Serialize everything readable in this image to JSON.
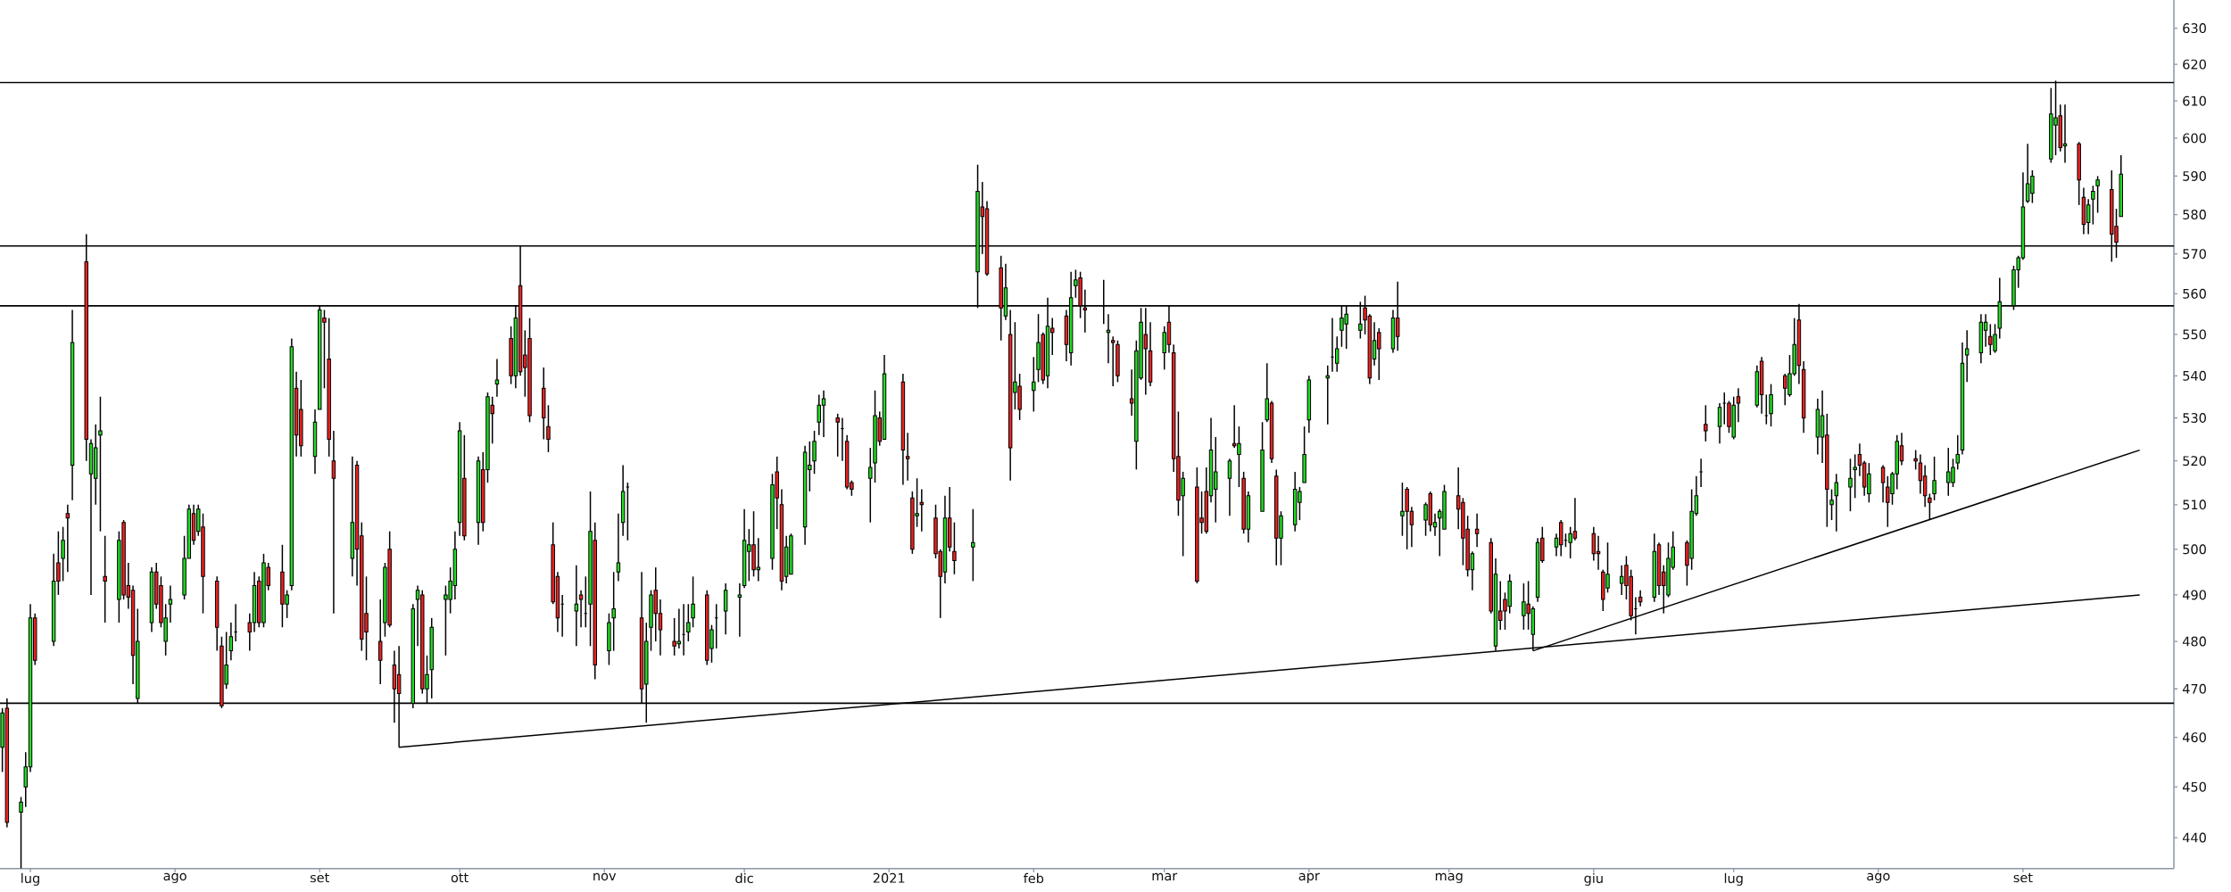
{
  "chart_data": {
    "type": "candlestick",
    "log": "y",
    "xlim": [
      "2020-06-24T12:00",
      "2021-10-03T08:00"
    ],
    "xticks": [
      {
        "value": "2020-07-01",
        "label": "lug"
      },
      {
        "value": "2020-08-01",
        "label": "ago"
      },
      {
        "value": "2020-09-01",
        "label": "set"
      },
      {
        "value": "2020-10-01",
        "label": "ott"
      },
      {
        "value": "2020-11-01",
        "label": "nov"
      },
      {
        "value": "2020-12-01",
        "label": "dic"
      },
      {
        "value": "2021-01-01",
        "label": "2021"
      },
      {
        "value": "2021-02-01",
        "label": "feb"
      },
      {
        "value": "2021-03-01",
        "label": "mar"
      },
      {
        "value": "2021-04-01",
        "label": "apr"
      },
      {
        "value": "2021-05-01",
        "label": "mag"
      },
      {
        "value": "2021-06-01",
        "label": "giu"
      },
      {
        "value": "2021-07-01",
        "label": "lug"
      },
      {
        "value": "2021-08-01",
        "label": "ago"
      },
      {
        "value": "2021-09-01",
        "label": "set"
      }
    ],
    "ylim": [
      434,
      638
    ],
    "yticks": [
      440,
      450,
      460,
      470,
      480,
      490,
      500,
      510,
      520,
      530,
      540,
      550,
      560,
      570,
      580,
      590,
      600,
      610,
      620,
      630
    ],
    "ref_lines": [
      {
        "axis": "y",
        "value": 615,
        "color": "#000000"
      },
      {
        "axis": "y",
        "value": 572,
        "color": "#000000"
      },
      {
        "axis": "y",
        "value": 557,
        "color": "#000000"
      },
      {
        "axis": "y",
        "value": 467,
        "color": "#000000"
      }
    ],
    "series": [
      {
        "type": "line",
        "color": "#000000",
        "x": [
          "2020-09-18",
          "2021-09-26"
        ],
        "values": [
          458,
          490
        ]
      },
      {
        "type": "line",
        "color": "#000000",
        "x": [
          "2021-05-19",
          "2021-09-26"
        ],
        "values": [
          478,
          522.5
        ]
      }
    ],
    "x": [
      "2020-06-25",
      "2020-06-26",
      "2020-06-29",
      "2020-06-30",
      "2020-07-01",
      "2020-07-02",
      "2020-07-06",
      "2020-07-07",
      "2020-07-08",
      "2020-07-09",
      "2020-07-10",
      "2020-07-13",
      "2020-07-14",
      "2020-07-15",
      "2020-07-16",
      "2020-07-17",
      "2020-07-20",
      "2020-07-21",
      "2020-07-22",
      "2020-07-23",
      "2020-07-24",
      "2020-07-27",
      "2020-07-28",
      "2020-07-29",
      "2020-07-30",
      "2020-07-31",
      "2020-08-03",
      "2020-08-04",
      "2020-08-05",
      "2020-08-06",
      "2020-08-07",
      "2020-08-10",
      "2020-08-11",
      "2020-08-12",
      "2020-08-13",
      "2020-08-14",
      "2020-08-17",
      "2020-08-18",
      "2020-08-19",
      "2020-08-20",
      "2020-08-21",
      "2020-08-24",
      "2020-08-25",
      "2020-08-26",
      "2020-08-27",
      "2020-08-28",
      "2020-08-31",
      "2020-09-01",
      "2020-09-02",
      "2020-09-03",
      "2020-09-04",
      "2020-09-08",
      "2020-09-09",
      "2020-09-10",
      "2020-09-11",
      "2020-09-14",
      "2020-09-15",
      "2020-09-16",
      "2020-09-17",
      "2020-09-18",
      "2020-09-21",
      "2020-09-22",
      "2020-09-23",
      "2020-09-24",
      "2020-09-25",
      "2020-09-28",
      "2020-09-29",
      "2020-09-30",
      "2020-10-01",
      "2020-10-02",
      "2020-10-05",
      "2020-10-06",
      "2020-10-07",
      "2020-10-08",
      "2020-10-09",
      "2020-10-12",
      "2020-10-13",
      "2020-10-14",
      "2020-10-15",
      "2020-10-16",
      "2020-10-19",
      "2020-10-20",
      "2020-10-21",
      "2020-10-22",
      "2020-10-23",
      "2020-10-26",
      "2020-10-27",
      "2020-10-28",
      "2020-10-29",
      "2020-10-30",
      "2020-11-02",
      "2020-11-03",
      "2020-11-04",
      "2020-11-05",
      "2020-11-06",
      "2020-11-09",
      "2020-11-10",
      "2020-11-11",
      "2020-11-12",
      "2020-11-13",
      "2020-11-16",
      "2020-11-17",
      "2020-11-18",
      "2020-11-19",
      "2020-11-20",
      "2020-11-23",
      "2020-11-24",
      "2020-11-25",
      "2020-11-27",
      "2020-11-30",
      "2020-12-01",
      "2020-12-02",
      "2020-12-03",
      "2020-12-04",
      "2020-12-07",
      "2020-12-08",
      "2020-12-09",
      "2020-12-10",
      "2020-12-11",
      "2020-12-14",
      "2020-12-15",
      "2020-12-16",
      "2020-12-17",
      "2020-12-18",
      "2020-12-21",
      "2020-12-22",
      "2020-12-23",
      "2020-12-24",
      "2020-12-28",
      "2020-12-29",
      "2020-12-30",
      "2020-12-31",
      "2021-01-04",
      "2021-01-05",
      "2021-01-06",
      "2021-01-07",
      "2021-01-08",
      "2021-01-11",
      "2021-01-12",
      "2021-01-13",
      "2021-01-14",
      "2021-01-15",
      "2021-01-19",
      "2021-01-20",
      "2021-01-21",
      "2021-01-22",
      "2021-01-25",
      "2021-01-26",
      "2021-01-27",
      "2021-01-28",
      "2021-01-29",
      "2021-02-01",
      "2021-02-02",
      "2021-02-03",
      "2021-02-04",
      "2021-02-05",
      "2021-02-08",
      "2021-02-09",
      "2021-02-10",
      "2021-02-11",
      "2021-02-12",
      "2021-02-16",
      "2021-02-17",
      "2021-02-18",
      "2021-02-19",
      "2021-02-22",
      "2021-02-23",
      "2021-02-24",
      "2021-02-25",
      "2021-02-26",
      "2021-03-01",
      "2021-03-02",
      "2021-03-03",
      "2021-03-04",
      "2021-03-05",
      "2021-03-08",
      "2021-03-09",
      "2021-03-10",
      "2021-03-11",
      "2021-03-12",
      "2021-03-15",
      "2021-03-16",
      "2021-03-17",
      "2021-03-18",
      "2021-03-19",
      "2021-03-22",
      "2021-03-23",
      "2021-03-24",
      "2021-03-25",
      "2021-03-26",
      "2021-03-29",
      "2021-03-30",
      "2021-03-31",
      "2021-04-01",
      "2021-04-05",
      "2021-04-06",
      "2021-04-07",
      "2021-04-08",
      "2021-04-09",
      "2021-04-12",
      "2021-04-13",
      "2021-04-14",
      "2021-04-15",
      "2021-04-16",
      "2021-04-19",
      "2021-04-20",
      "2021-04-21",
      "2021-04-22",
      "2021-04-23",
      "2021-04-26",
      "2021-04-27",
      "2021-04-28",
      "2021-04-29",
      "2021-04-30",
      "2021-05-03",
      "2021-05-04",
      "2021-05-05",
      "2021-05-06",
      "2021-05-07",
      "2021-05-10",
      "2021-05-11",
      "2021-05-12",
      "2021-05-13",
      "2021-05-14",
      "2021-05-17",
      "2021-05-18",
      "2021-05-19",
      "2021-05-20",
      "2021-05-21",
      "2021-05-24",
      "2021-05-25",
      "2021-05-26",
      "2021-05-27",
      "2021-05-28",
      "2021-06-01",
      "2021-06-02",
      "2021-06-03",
      "2021-06-04",
      "2021-06-07",
      "2021-06-08",
      "2021-06-09",
      "2021-06-10",
      "2021-06-11",
      "2021-06-14",
      "2021-06-15",
      "2021-06-16",
      "2021-06-17",
      "2021-06-18",
      "2021-06-21",
      "2021-06-22",
      "2021-06-23",
      "2021-06-24",
      "2021-06-25",
      "2021-06-28",
      "2021-06-29",
      "2021-06-30",
      "2021-07-01",
      "2021-07-02",
      "2021-07-06",
      "2021-07-07",
      "2021-07-08",
      "2021-07-09",
      "2021-07-12",
      "2021-07-13",
      "2021-07-14",
      "2021-07-15",
      "2021-07-16",
      "2021-07-19",
      "2021-07-20",
      "2021-07-21",
      "2021-07-22",
      "2021-07-23",
      "2021-07-26",
      "2021-07-27",
      "2021-07-28",
      "2021-07-29",
      "2021-07-30",
      "2021-08-02",
      "2021-08-03",
      "2021-08-04",
      "2021-08-05",
      "2021-08-06",
      "2021-08-09",
      "2021-08-10",
      "2021-08-11",
      "2021-08-12",
      "2021-08-13",
      "2021-08-16",
      "2021-08-17",
      "2021-08-18",
      "2021-08-19",
      "2021-08-20",
      "2021-08-23",
      "2021-08-24",
      "2021-08-25",
      "2021-08-26",
      "2021-08-27",
      "2021-08-30",
      "2021-08-31",
      "2021-09-01",
      "2021-09-02",
      "2021-09-03",
      "2021-09-07",
      "2021-09-08",
      "2021-09-09",
      "2021-09-10",
      "2021-09-13",
      "2021-09-14",
      "2021-09-15",
      "2021-09-16",
      "2021-09-17",
      "2021-09-20",
      "2021-09-21",
      "2021-09-22"
    ],
    "ohlc": [
      [
        458,
        466,
        453,
        465
      ],
      [
        466,
        468,
        442,
        443
      ],
      [
        445,
        448,
        434,
        447
      ],
      [
        450,
        457,
        446,
        454
      ],
      [
        454,
        488,
        453,
        485
      ],
      [
        485,
        486,
        475,
        476
      ],
      [
        480,
        499,
        479,
        493
      ],
      [
        497,
        504,
        490,
        493
      ],
      [
        498,
        505,
        493,
        502
      ],
      [
        508,
        510,
        495,
        507
      ],
      [
        519,
        556,
        511,
        548
      ],
      [
        568,
        575,
        520,
        525
      ],
      [
        517,
        525,
        490,
        524
      ],
      [
        516,
        528.5,
        510,
        523
      ],
      [
        526,
        535,
        504,
        527
      ],
      [
        494,
        503,
        484,
        493
      ],
      [
        489,
        504,
        484,
        502
      ],
      [
        506,
        506.5,
        489,
        490
      ],
      [
        492,
        497,
        487,
        489.5
      ],
      [
        491,
        492,
        471,
        477
      ],
      [
        468,
        487,
        467,
        480
      ],
      [
        484,
        496,
        482,
        495
      ],
      [
        495,
        497,
        487,
        488
      ],
      [
        492,
        494,
        483,
        484
      ],
      [
        480,
        488,
        477,
        485
      ],
      [
        488,
        492,
        484,
        489
      ],
      [
        490,
        503,
        489,
        498
      ],
      [
        498,
        510,
        498,
        509
      ],
      [
        508,
        510,
        501,
        502
      ],
      [
        504,
        510,
        503,
        509
      ],
      [
        505,
        508,
        486,
        494
      ],
      [
        493,
        494,
        478,
        483
      ],
      [
        479,
        481,
        466,
        466.5
      ],
      [
        471,
        482,
        470,
        475
      ],
      [
        478,
        484,
        476,
        481
      ],
      [
        482,
        488,
        480,
        482
      ],
      [
        484,
        486,
        478,
        482
      ],
      [
        484,
        495,
        482,
        492
      ],
      [
        493,
        494,
        483,
        484
      ],
      [
        484,
        499,
        483,
        497
      ],
      [
        496,
        497,
        491,
        492
      ],
      [
        495,
        501,
        483,
        488
      ],
      [
        488,
        491,
        485,
        490
      ],
      [
        492,
        549,
        491,
        547
      ],
      [
        537,
        541,
        521,
        526
      ],
      [
        532,
        539,
        521,
        523.5
      ],
      [
        521,
        532,
        517,
        529
      ],
      [
        532,
        557,
        532,
        556
      ],
      [
        554,
        556,
        537,
        553
      ],
      [
        544,
        554,
        521,
        525
      ],
      [
        520,
        527,
        486,
        516
      ],
      [
        498,
        521,
        494,
        506
      ],
      [
        519,
        520,
        492,
        500
      ],
      [
        503,
        506,
        478,
        480.5
      ],
      [
        486,
        494,
        476,
        482
      ],
      [
        480,
        489,
        471,
        476
      ],
      [
        484,
        497,
        481,
        496
      ],
      [
        500,
        504,
        483,
        483.5
      ],
      [
        475,
        478,
        463,
        470
      ],
      [
        473,
        479,
        458,
        469
      ],
      [
        467,
        488,
        466,
        487
      ],
      [
        489,
        492,
        479,
        491
      ],
      [
        490,
        491,
        469,
        470
      ],
      [
        470,
        477,
        467,
        473
      ],
      [
        474,
        485,
        468,
        483
      ],
      [
        489,
        492,
        477,
        490
      ],
      [
        489,
        496,
        486,
        493
      ],
      [
        492,
        504,
        489,
        500
      ],
      [
        506,
        529,
        503,
        527
      ],
      [
        516,
        526,
        502,
        503
      ],
      [
        506,
        521,
        501,
        520
      ],
      [
        518,
        522,
        504,
        506
      ],
      [
        518,
        536,
        515,
        535
      ],
      [
        533,
        535,
        524,
        531
      ],
      [
        538,
        544,
        535,
        539
      ],
      [
        549,
        552,
        538,
        540
      ],
      [
        540,
        557,
        537,
        554
      ],
      [
        562,
        572,
        540,
        541
      ],
      [
        545,
        551,
        535,
        542
      ],
      [
        549,
        554,
        529,
        530.5
      ],
      [
        537,
        542,
        525,
        530
      ],
      [
        528,
        533,
        522,
        525
      ],
      [
        501,
        506,
        488,
        488.5
      ],
      [
        494,
        495,
        482,
        485
      ],
      [
        488,
        490,
        481,
        488
      ],
      [
        486.5,
        496.5,
        479,
        488
      ],
      [
        490,
        491,
        483,
        489
      ],
      [
        486,
        494,
        483,
        486
      ],
      [
        488,
        513,
        479,
        504
      ],
      [
        502,
        506,
        472,
        475
      ],
      [
        478,
        486,
        475,
        484
      ],
      [
        485,
        495,
        478,
        487
      ],
      [
        495,
        508,
        493,
        497
      ],
      [
        506,
        519,
        503,
        513
      ],
      [
        514,
        515,
        502,
        514
      ],
      [
        485,
        495,
        467,
        470
      ],
      [
        471,
        484,
        463,
        480
      ],
      [
        483,
        491,
        478,
        490
      ],
      [
        491,
        496,
        480,
        486
      ],
      [
        486,
        489,
        477,
        482.5
      ],
      [
        480,
        485,
        477,
        479
      ],
      [
        479.5,
        487,
        478.5,
        480
      ],
      [
        481.5,
        488,
        477,
        481.5
      ],
      [
        482,
        488,
        480,
        484
      ],
      [
        485,
        494,
        483,
        488
      ],
      [
        490,
        491,
        475,
        476
      ],
      [
        478.5,
        483.5,
        475.5,
        482.5
      ],
      [
        485,
        488,
        478.5,
        485
      ],
      [
        486.5,
        492.5,
        481.5,
        491
      ],
      [
        489.5,
        492.5,
        481,
        490
      ],
      [
        492,
        509,
        491.5,
        502
      ],
      [
        499.5,
        504.5,
        493,
        501
      ],
      [
        501,
        508.5,
        494,
        495.5
      ],
      [
        495.5,
        502.5,
        493,
        496
      ],
      [
        498,
        517,
        495.5,
        514.5
      ],
      [
        517.5,
        521,
        504.5,
        511.5
      ],
      [
        510,
        513.5,
        491,
        493
      ],
      [
        494,
        503,
        492.5,
        500.5
      ],
      [
        494.5,
        503.5,
        494.5,
        503
      ],
      [
        505,
        523.5,
        501,
        522
      ],
      [
        518,
        524.5,
        513,
        519
      ],
      [
        520,
        527,
        517,
        524.5
      ],
      [
        529,
        535.5,
        526,
        533
      ],
      [
        533,
        536.5,
        525.5,
        534.5
      ],
      [
        530,
        531,
        521,
        529
      ],
      [
        527.5,
        530,
        520,
        527.5
      ],
      [
        524.5,
        526,
        513.5,
        514
      ],
      [
        515,
        515.5,
        512,
        513.5
      ],
      [
        516,
        523,
        506,
        518.5
      ],
      [
        519.5,
        536.5,
        515,
        530.5
      ],
      [
        530,
        531.5,
        523.5,
        524.5
      ],
      [
        525,
        545,
        525,
        540.5
      ],
      [
        538.5,
        540.5,
        514.5,
        522.5
      ],
      [
        521,
        526.5,
        515.5,
        520.5
      ],
      [
        511.5,
        513,
        499,
        500
      ],
      [
        507.5,
        516,
        505,
        508
      ],
      [
        510.5,
        513.5,
        504,
        510
      ],
      [
        507,
        510,
        498,
        499
      ],
      [
        499.5,
        500,
        485,
        494
      ],
      [
        495,
        512,
        492.5,
        507
      ],
      [
        507,
        514,
        499.5,
        500.5
      ],
      [
        499.5,
        506,
        494.5,
        497.5
      ],
      [
        500.5,
        509,
        493,
        501.5
      ],
      [
        565.5,
        593,
        556.5,
        586
      ],
      [
        582,
        588.5,
        570,
        579.5
      ],
      [
        581.5,
        583.5,
        564.5,
        565
      ],
      [
        566.5,
        569.5,
        548.5,
        556.5
      ],
      [
        554.5,
        567.5,
        553.5,
        561.5
      ],
      [
        550,
        556,
        515.5,
        523
      ],
      [
        536,
        553,
        532,
        538.5
      ],
      [
        537.5,
        540.5,
        529.5,
        532
      ],
      [
        536.5,
        544.5,
        531.5,
        538.5
      ],
      [
        541.5,
        555,
        538.5,
        548
      ],
      [
        550,
        550.5,
        538,
        539
      ],
      [
        540,
        559,
        537,
        552
      ],
      [
        551.5,
        554,
        545,
        550.5
      ],
      [
        554.5,
        556,
        543.5,
        547.5
      ],
      [
        545.5,
        565.5,
        542.5,
        559
      ],
      [
        562,
        566,
        559,
        563.5
      ],
      [
        564,
        565.5,
        554,
        557
      ],
      [
        556.5,
        561,
        550.5,
        556
      ],
      [
        557,
        563.5,
        552.5,
        557
      ],
      [
        550.5,
        555,
        543,
        551
      ],
      [
        548.5,
        549.5,
        537.5,
        548
      ],
      [
        547.5,
        548.5,
        538.5,
        540
      ],
      [
        534.5,
        541.5,
        530.5,
        533.5
      ],
      [
        524.5,
        548.5,
        518,
        546
      ],
      [
        539.5,
        556.5,
        539,
        553
      ],
      [
        550,
        556.5,
        535.5,
        546.5
      ],
      [
        546,
        553,
        537.5,
        538.5
      ],
      [
        545.5,
        552,
        541.5,
        550.5
      ],
      [
        553,
        557,
        545.5,
        547.5
      ],
      [
        545.5,
        547.5,
        517.5,
        520.5
      ],
      [
        521,
        531.5,
        507.5,
        511
      ],
      [
        512,
        517.5,
        498.5,
        516
      ],
      [
        514,
        518.5,
        492.5,
        493
      ],
      [
        507,
        513,
        503.5,
        506
      ],
      [
        513,
        518.5,
        503.5,
        504
      ],
      [
        512,
        530,
        510.5,
        522.5
      ],
      [
        513.5,
        525.5,
        506,
        517.5
      ],
      [
        516,
        520.5,
        507.5,
        520
      ],
      [
        524,
        533,
        523,
        523.5
      ],
      [
        521.5,
        528,
        514,
        524
      ],
      [
        516,
        517.5,
        503.5,
        504.5
      ],
      [
        504.5,
        513,
        501.5,
        512
      ],
      [
        508.5,
        529,
        508.5,
        522.5
      ],
      [
        529.5,
        543,
        529,
        534.5
      ],
      [
        533.5,
        534,
        519.5,
        520.5
      ],
      [
        516.5,
        518,
        496.5,
        502.5
      ],
      [
        502.5,
        508.5,
        496.5,
        507.5
      ],
      [
        505.5,
        517.5,
        504,
        513.5
      ],
      [
        510.5,
        514,
        506.5,
        513
      ],
      [
        515,
        528,
        515,
        521.5
      ],
      [
        529.5,
        540,
        526.5,
        539
      ],
      [
        539.5,
        542.5,
        528.5,
        540
      ],
      [
        544.5,
        554,
        541,
        544.5
      ],
      [
        543,
        549.5,
        541,
        546.5
      ],
      [
        551,
        557,
        547,
        554
      ],
      [
        552.5,
        557,
        546.5,
        555
      ],
      [
        551,
        558,
        549,
        552.5
      ],
      [
        556.5,
        559.5,
        550,
        553.5
      ],
      [
        554.5,
        555,
        538,
        539.5
      ],
      [
        544,
        553,
        542.5,
        548.5
      ],
      [
        550.5,
        551.5,
        539,
        546.5
      ],
      [
        546.5,
        556,
        545.5,
        554
      ],
      [
        554,
        563,
        546,
        549.5
      ],
      [
        507.5,
        515,
        503,
        508.5
      ],
      [
        513.5,
        514,
        500,
        508.5
      ],
      [
        508.5,
        509.5,
        500.5,
        505.5
      ],
      [
        506.5,
        510.5,
        503,
        510
      ],
      [
        512.5,
        513,
        504,
        505.5
      ],
      [
        505,
        508,
        503,
        506
      ],
      [
        507,
        509,
        498.5,
        508.5
      ],
      [
        504.5,
        514.5,
        504.5,
        513
      ],
      [
        512,
        518.5,
        504.5,
        509
      ],
      [
        510.5,
        511.5,
        496.5,
        502.5
      ],
      [
        504.5,
        507.5,
        494,
        495.5
      ],
      [
        495.5,
        499.5,
        491,
        499
      ],
      [
        504.5,
        508,
        500.5,
        503.5
      ],
      [
        501.5,
        502.5,
        486,
        486.5
      ],
      [
        479,
        498,
        478,
        494.5
      ],
      [
        486.5,
        493,
        482.5,
        484.5
      ],
      [
        489,
        490.5,
        482.5,
        486.5
      ],
      [
        487.5,
        494.5,
        486,
        493
      ],
      [
        485.5,
        492.5,
        482.5,
        488.5
      ],
      [
        488,
        493,
        482.5,
        486
      ],
      [
        481.5,
        487.5,
        478,
        487
      ],
      [
        489.5,
        502.5,
        488.5,
        501.5
      ],
      [
        502.5,
        505,
        497,
        497.5
      ],
      [
        500.5,
        503.5,
        498.5,
        502.5
      ],
      [
        506,
        506.5,
        498.5,
        501
      ],
      [
        502,
        503.5,
        500.5,
        502
      ],
      [
        501.5,
        505,
        498,
        503.5
      ],
      [
        504,
        511.5,
        502,
        502.5
      ],
      [
        503.5,
        505,
        497.5,
        499
      ],
      [
        499.5,
        503,
        495.5,
        499
      ],
      [
        495,
        495.5,
        486.5,
        489
      ],
      [
        491.5,
        501.5,
        490.5,
        494.5
      ],
      [
        492.5,
        496.5,
        490,
        494
      ],
      [
        496.5,
        498.5,
        489,
        492
      ],
      [
        494,
        495.5,
        484.5,
        485.5
      ],
      [
        487,
        489.5,
        481.5,
        487
      ],
      [
        489.5,
        491,
        487.5,
        488.5
      ],
      [
        489.5,
        503.5,
        488.5,
        499.5
      ],
      [
        501,
        501.5,
        490,
        492
      ],
      [
        495,
        496.5,
        486,
        492
      ],
      [
        490,
        501.5,
        489.5,
        498
      ],
      [
        496,
        504,
        495.5,
        500.5
      ],
      [
        501.5,
        502,
        492,
        496.5
      ],
      [
        498,
        513.5,
        495.5,
        508.5
      ],
      [
        508,
        516.5,
        507.5,
        512
      ],
      [
        517.5,
        520.5,
        514,
        517.5
      ],
      [
        528.5,
        533,
        524.5,
        527
      ],
      [
        528,
        533.5,
        524,
        532.5
      ],
      [
        533.5,
        536,
        528.5,
        533.5
      ],
      [
        533.5,
        534,
        526.5,
        528
      ],
      [
        525.5,
        535,
        525,
        533
      ],
      [
        535,
        537,
        529,
        533.5
      ],
      [
        533,
        542.5,
        532.5,
        541
      ],
      [
        543.5,
        544.5,
        531,
        535.5
      ],
      [
        530.5,
        535.5,
        528.5,
        530.5
      ],
      [
        531,
        538,
        528,
        535.5
      ],
      [
        540,
        540.5,
        533,
        537
      ],
      [
        535.5,
        545,
        535,
        540.5
      ],
      [
        540.5,
        554,
        540,
        547.5
      ],
      [
        553.5,
        557.5,
        538,
        542.5
      ],
      [
        541.5,
        543.5,
        526.5,
        530
      ],
      [
        525.5,
        534.5,
        521.5,
        532
      ],
      [
        525.5,
        536.5,
        519.5,
        530.5
      ],
      [
        526,
        531,
        505,
        513.5
      ],
      [
        510,
        513.5,
        506.5,
        511
      ],
      [
        512,
        517,
        504,
        515
      ],
      [
        514,
        520.5,
        508.5,
        516
      ],
      [
        518,
        521.5,
        511.5,
        518.5
      ],
      [
        521.5,
        524,
        516.5,
        519
      ],
      [
        519.5,
        520,
        512,
        514
      ],
      [
        512.5,
        519.5,
        510.5,
        517
      ],
      [
        518.5,
        519,
        510.5,
        515
      ],
      [
        514,
        516.5,
        505,
        510.5
      ],
      [
        512.5,
        517.5,
        510,
        517
      ],
      [
        517,
        526,
        513.5,
        524.5
      ],
      [
        523.5,
        526.5,
        519,
        520
      ],
      [
        520.5,
        522.5,
        518,
        520
      ],
      [
        519.5,
        521.5,
        512.5,
        515.5
      ],
      [
        516.5,
        519,
        509.5,
        512
      ],
      [
        511.5,
        512.5,
        506.5,
        510.5
      ],
      [
        512.5,
        521,
        511,
        515.5
      ],
      [
        515,
        523,
        512,
        517.5
      ],
      [
        515,
        520.5,
        514,
        518.5
      ],
      [
        519.5,
        526,
        518,
        521.5
      ],
      [
        522.5,
        548,
        521.5,
        543
      ],
      [
        545,
        551,
        538.5,
        546.5
      ],
      [
        545.5,
        555,
        543,
        553
      ],
      [
        551,
        555,
        547,
        553
      ],
      [
        549.5,
        552.5,
        545,
        547.5
      ],
      [
        546,
        552.5,
        545.5,
        550
      ],
      [
        551.5,
        564,
        549,
        558
      ],
      [
        557,
        567,
        556,
        566
      ],
      [
        566,
        569.5,
        561.5,
        569
      ],
      [
        569,
        591,
        568.5,
        582
      ],
      [
        583.5,
        598.5,
        583,
        588
      ],
      [
        585.5,
        591.5,
        583,
        590
      ],
      [
        594.5,
        613.5,
        593.5,
        606.5
      ],
      [
        603.5,
        615.5,
        595.5,
        605.5
      ],
      [
        606,
        609,
        596.5,
        597.5
      ],
      [
        598,
        609,
        593.5,
        598.5
      ],
      [
        598.5,
        599,
        582.5,
        589
      ],
      [
        584.5,
        587,
        575,
        577.5
      ],
      [
        578,
        584,
        575,
        582.5
      ],
      [
        584,
        587.5,
        577.5,
        586
      ],
      [
        587.5,
        590,
        580.5,
        589
      ],
      [
        586.5,
        591.5,
        568,
        575
      ],
      [
        577,
        581.5,
        569,
        573
      ],
      [
        579.5,
        595.5,
        579.5,
        590.5
      ]
    ],
    "colors": [
      "#22dd22",
      "#ee2222",
      "#22dd22",
      "#22dd22",
      "#22dd22",
      "#ee2222",
      "#22dd22",
      "#ee2222",
      "#22dd22",
      "#ee2222",
      "#22dd22",
      "#ee2222",
      "#22dd22",
      "#22dd22",
      "#22dd22",
      "#ee2222",
      "#22dd22",
      "#ee2222",
      "#ee2222",
      "#ee2222",
      "#22dd22",
      "#22dd22",
      "#ee2222",
      "#ee2222",
      "#22dd22",
      "#22dd22",
      "#22dd22",
      "#22dd22",
      "#ee2222",
      "#22dd22",
      "#ee2222",
      "#ee2222",
      "#ee2222",
      "#22dd22",
      "#22dd22",
      "#000000",
      "#ee2222",
      "#22dd22",
      "#ee2222",
      "#22dd22",
      "#ee2222",
      "#ee2222",
      "#22dd22",
      "#22dd22",
      "#ee2222",
      "#ee2222",
      "#22dd22",
      "#22dd22",
      "#ee2222",
      "#ee2222",
      "#ee2222",
      "#22dd22",
      "#ee2222",
      "#ee2222",
      "#ee2222",
      "#ee2222",
      "#22dd22",
      "#ee2222",
      "#ee2222",
      "#ee2222",
      "#22dd22",
      "#22dd22",
      "#ee2222",
      "#22dd22",
      "#22dd22",
      "#22dd22",
      "#22dd22",
      "#22dd22",
      "#22dd22",
      "#ee2222",
      "#22dd22",
      "#ee2222",
      "#22dd22",
      "#ee2222",
      "#22dd22",
      "#ee2222",
      "#22dd22",
      "#ee2222",
      "#ee2222",
      "#ee2222",
      "#ee2222",
      "#ee2222",
      "#ee2222",
      "#ee2222",
      "#000000",
      "#22dd22",
      "#ee2222",
      "#000000",
      "#22dd22",
      "#ee2222",
      "#22dd22",
      "#22dd22",
      "#22dd22",
      "#22dd22",
      "#000000",
      "#ee2222",
      "#22dd22",
      "#22dd22",
      "#ee2222",
      "#ee2222",
      "#ee2222",
      "#22dd22",
      "#000000",
      "#22dd22",
      "#22dd22",
      "#ee2222",
      "#22dd22",
      "#000000",
      "#22dd22",
      "#22dd22",
      "#22dd22",
      "#22dd22",
      "#ee2222",
      "#22dd22",
      "#22dd22",
      "#ee2222",
      "#ee2222",
      "#22dd22",
      "#22dd22",
      "#22dd22",
      "#22dd22",
      "#22dd22",
      "#22dd22",
      "#22dd22",
      "#ee2222",
      "#000000",
      "#ee2222",
      "#ee2222",
      "#22dd22",
      "#22dd22",
      "#ee2222",
      "#22dd22",
      "#ee2222",
      "#ee2222",
      "#ee2222",
      "#22dd22",
      "#ee2222",
      "#ee2222",
      "#ee2222",
      "#22dd22",
      "#ee2222",
      "#ee2222",
      "#22dd22",
      "#22dd22",
      "#ee2222",
      "#ee2222",
      "#ee2222",
      "#22dd22",
      "#ee2222",
      "#22dd22",
      "#ee2222",
      "#22dd22",
      "#22dd22",
      "#ee2222",
      "#22dd22",
      "#ee2222",
      "#ee2222",
      "#22dd22",
      "#22dd22",
      "#ee2222",
      "#ee2222",
      "#000000",
      "#22dd22",
      "#ee2222",
      "#ee2222",
      "#ee2222",
      "#22dd22",
      "#22dd22",
      "#ee2222",
      "#ee2222",
      "#22dd22",
      "#ee2222",
      "#ee2222",
      "#ee2222",
      "#22dd22",
      "#ee2222",
      "#ee2222",
      "#ee2222",
      "#22dd22",
      "#22dd22",
      "#22dd22",
      "#ee2222",
      "#22dd22",
      "#ee2222",
      "#22dd22",
      "#22dd22",
      "#22dd22",
      "#ee2222",
      "#ee2222",
      "#22dd22",
      "#22dd22",
      "#22dd22",
      "#22dd22",
      "#22dd22",
      "#22dd22",
      "#000000",
      "#22dd22",
      "#22dd22",
      "#22dd22",
      "#22dd22",
      "#ee2222",
      "#ee2222",
      "#22dd22",
      "#ee2222",
      "#22dd22",
      "#ee2222",
      "#22dd22",
      "#ee2222",
      "#ee2222",
      "#22dd22",
      "#ee2222",
      "#22dd22",
      "#22dd22",
      "#22dd22",
      "#ee2222",
      "#ee2222",
      "#ee2222",
      "#22dd22",
      "#ee2222",
      "#ee2222",
      "#22dd22",
      "#ee2222",
      "#ee2222",
      "#22dd22",
      "#22dd22",
      "#ee2222",
      "#22dd22",
      "#22dd22",
      "#ee2222",
      "#22dd22",
      "#ee2222",
      "#000000",
      "#22dd22",
      "#ee2222",
      "#ee2222",
      "#ee2222",
      "#ee2222",
      "#22dd22",
      "#22dd22",
      "#ee2222",
      "#ee2222",
      "#000000",
      "#ee2222",
      "#22dd22",
      "#ee2222",
      "#ee2222",
      "#22dd22",
      "#22dd22",
      "#ee2222",
      "#22dd22",
      "#22dd22",
      "#000000",
      "#ee2222",
      "#22dd22",
      "#000000",
      "#ee2222",
      "#22dd22",
      "#ee2222",
      "#22dd22",
      "#ee2222",
      "#000000",
      "#22dd22",
      "#ee2222",
      "#22dd22",
      "#22dd22",
      "#ee2222",
      "#ee2222",
      "#22dd22",
      "#22dd22",
      "#ee2222",
      "#22dd22",
      "#22dd22",
      "#22dd22",
      "#22dd22",
      "#ee2222",
      "#ee2222",
      "#22dd22",
      "#ee2222",
      "#ee2222",
      "#22dd22",
      "#22dd22",
      "#ee2222",
      "#ee2222",
      "#ee2222",
      "#ee2222",
      "#ee2222",
      "#22dd22",
      "#22dd22",
      "#22dd22",
      "#22dd22",
      "#22dd22",
      "#22dd22",
      "#22dd22",
      "#22dd22",
      "#ee2222",
      "#22dd22",
      "#22dd22",
      "#22dd22",
      "#22dd22",
      "#22dd22",
      "#22dd22",
      "#22dd22",
      "#22dd22",
      "#22dd22",
      "#ee2222",
      "#22dd22",
      "#ee2222",
      "#ee2222",
      "#22dd22",
      "#22dd22",
      "#22dd22",
      "#ee2222",
      "#ee2222",
      "#22dd22"
    ]
  }
}
